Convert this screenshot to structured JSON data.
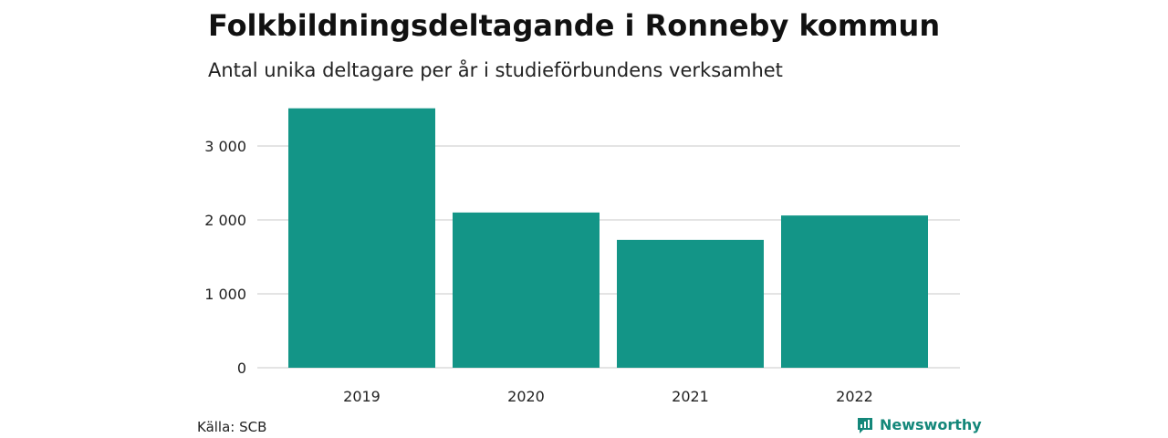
{
  "header": {
    "title": "Folkbildningsdeltagande i Ronneby kommun",
    "subtitle": "Antal unika deltagare per år i studieförbundens verksamhet"
  },
  "footer": {
    "source": "Källa: SCB",
    "brand": "Newsworthy",
    "brand_icon": "bar-chart-logo-icon"
  },
  "colors": {
    "bar": "#139587",
    "grid": "#dcdcdc",
    "brand": "#14877a"
  },
  "chart_data": {
    "type": "bar",
    "title": "Folkbildningsdeltagande i Ronneby kommun",
    "subtitle": "Antal unika deltagare per år i studieförbundens verksamhet",
    "xlabel": "",
    "ylabel": "",
    "categories": [
      "2019",
      "2020",
      "2021",
      "2022"
    ],
    "values": [
      3510,
      2100,
      1730,
      2060
    ],
    "ylim": [
      0,
      3500
    ],
    "yticks": [
      0,
      1000,
      2000,
      3000
    ],
    "ytick_labels": [
      "0",
      "1 000",
      "2 000",
      "3 000"
    ],
    "grid": true,
    "legend": "none"
  }
}
